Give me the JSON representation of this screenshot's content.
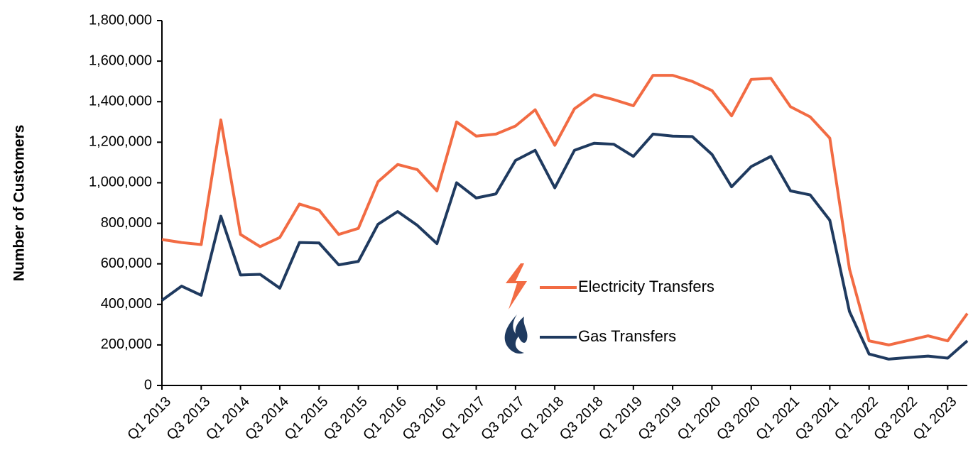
{
  "chart_data": {
    "type": "line",
    "y_label": "Number of Customers",
    "categories": [
      "Q1 2013",
      null,
      "Q3 2013",
      null,
      "Q1 2014",
      null,
      "Q3 2014",
      null,
      "Q1 2015",
      null,
      "Q3 2015",
      null,
      "Q1 2016",
      null,
      "Q3 2016",
      null,
      "Q1 2017",
      null,
      "Q3 2017",
      null,
      "Q1 2018",
      null,
      "Q3 2018",
      null,
      "Q1 2019",
      null,
      "Q3 2019",
      null,
      "Q1 2020",
      null,
      "Q3 2020",
      null,
      "Q1 2021",
      null,
      "Q3 2021",
      null,
      "Q1 2022",
      null,
      "Q3 2022",
      null,
      "Q1 2023",
      null
    ],
    "series": [
      {
        "name": "Electricity Transfers",
        "color": "#f26b43",
        "values": [
          720000,
          705000,
          695000,
          1310000,
          745000,
          685000,
          730000,
          895000,
          865000,
          745000,
          775000,
          1005000,
          1090000,
          1065000,
          960000,
          1300000,
          1230000,
          1240000,
          1280000,
          1360000,
          1185000,
          1365000,
          1435000,
          1410000,
          1380000,
          1530000,
          1530000,
          1500000,
          1455000,
          1330000,
          1510000,
          1515000,
          1375000,
          1325000,
          1220000,
          575000,
          220000,
          200000,
          222000,
          245000,
          220000,
          355000
        ]
      },
      {
        "name": "Gas Transfers",
        "color": "#1f3a5f",
        "values": [
          420000,
          490000,
          445000,
          835000,
          545000,
          548000,
          480000,
          705000,
          703000,
          595000,
          612000,
          795000,
          858000,
          790000,
          700000,
          1000000,
          925000,
          945000,
          1110000,
          1160000,
          975000,
          1160000,
          1195000,
          1190000,
          1130000,
          1240000,
          1230000,
          1228000,
          1140000,
          980000,
          1080000,
          1130000,
          960000,
          940000,
          815000,
          365000,
          155000,
          130000,
          138000,
          145000,
          135000,
          220000
        ]
      }
    ],
    "ylim": [
      0,
      1800000
    ],
    "yticks": [
      0,
      {
        "value": 200000,
        "label": "200,000"
      },
      {
        "value": 400000,
        "label": "400,000"
      },
      {
        "value": 600000,
        "label": "600,000"
      },
      {
        "value": 800000,
        "label": "800,000"
      },
      {
        "value": 1000000,
        "label": "1,000,000"
      },
      {
        "value": 1200000,
        "label": "1,200,000"
      },
      {
        "value": 1400000,
        "label": "1,400,000"
      },
      {
        "value": 1600000,
        "label": "1,600,000"
      },
      {
        "value": 1800000,
        "label": "1,800,000"
      }
    ],
    "grid": false
  }
}
